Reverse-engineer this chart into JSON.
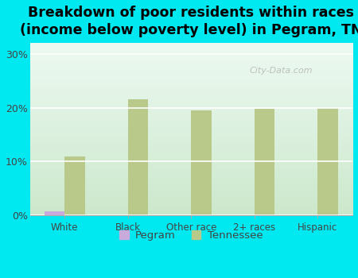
{
  "title": "Breakdown of poor residents within races\n(income below poverty level) in Pegram, TN",
  "categories": [
    "White",
    "Black",
    "Other race",
    "2+ races",
    "Hispanic"
  ],
  "pegram_values": [
    0.8,
    0.0,
    0.0,
    0.0,
    0.0
  ],
  "tennessee_values": [
    11.0,
    21.5,
    19.5,
    19.8,
    20.0
  ],
  "pegram_color": "#c9aadd",
  "tennessee_color": "#b8c98a",
  "background_outer": "#00e8f0",
  "background_inner_top": "#eefaf4",
  "background_inner_bottom": "#cce8cc",
  "yticks": [
    0,
    10,
    20,
    30
  ],
  "ytick_labels": [
    "0%",
    "10%",
    "20%",
    "30%"
  ],
  "ylim": [
    0,
    32
  ],
  "bar_width": 0.32,
  "title_fontsize": 12.5,
  "legend_labels": [
    "Pegram",
    "Tennessee"
  ],
  "watermark": "City-Data.com"
}
